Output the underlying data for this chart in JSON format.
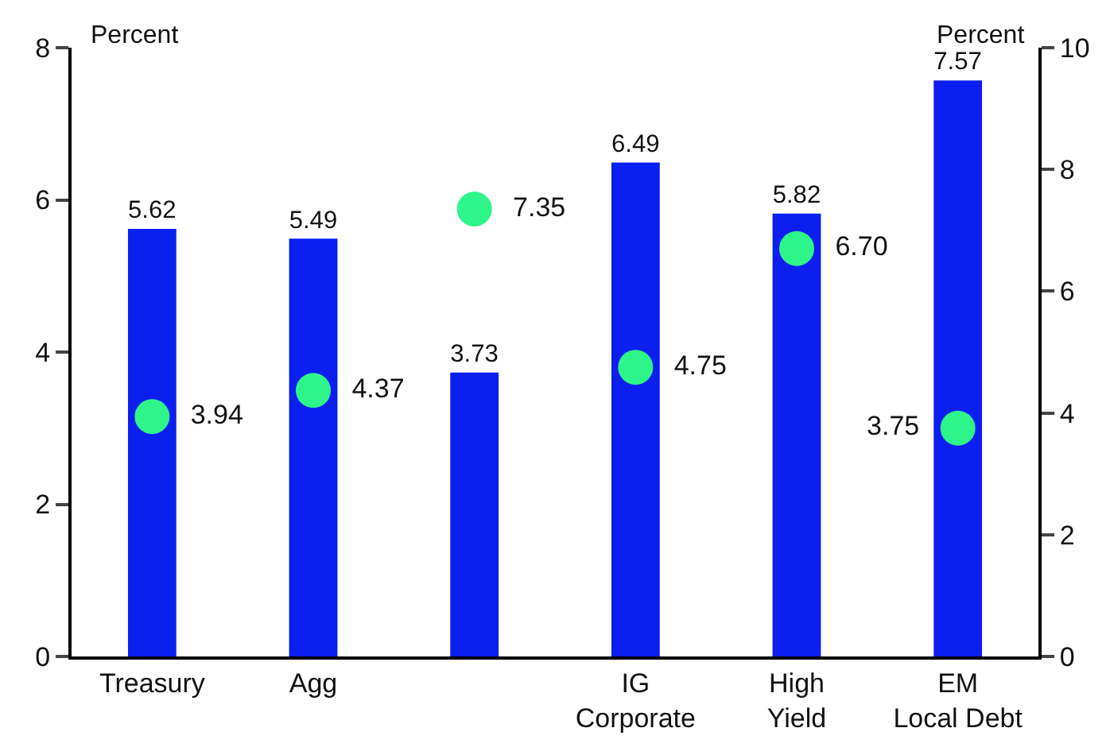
{
  "chart_data": {
    "type": "bar",
    "ylabel": "Percent",
    "y2label": "Percent",
    "categories": [
      "Treasury",
      "Agg",
      null,
      "IG\nCorporate",
      "High\nYield",
      "EM\nLocal Debt"
    ],
    "series": [
      {
        "color": "#0a1ff0",
        "values": [
          5.62,
          5.49,
          3.73,
          6.49,
          5.82,
          7.57
        ]
      },
      {
        "type": "scatter",
        "axis": "y2",
        "color": "#2ef58a",
        "marker": "circle",
        "values": [
          3.94,
          4.37,
          7.35,
          4.75,
          6.7,
          3.75
        ],
        "value_labels": [
          "3.94",
          "4.37",
          "7.35",
          "4.75",
          "6.70",
          "3.75"
        ]
      }
    ],
    "ylim": [
      0,
      8
    ],
    "yticks": [
      0,
      2,
      4,
      6,
      8
    ],
    "y2lim": [
      0,
      10
    ],
    "y2ticks": [
      0,
      2,
      4,
      6,
      8,
      10
    ],
    "data_labels": true,
    "grid": false
  }
}
